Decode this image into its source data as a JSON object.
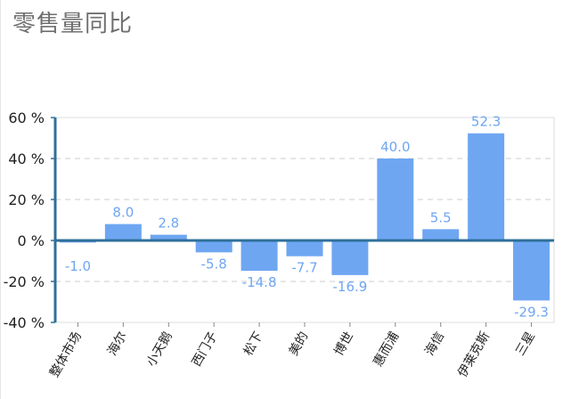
{
  "page": {
    "title": "零售量同比"
  },
  "chart_data": {
    "type": "bar",
    "title": "零售量同比",
    "xlabel": "",
    "ylabel": "",
    "categories": [
      "整体市场",
      "海尔",
      "小天鹅",
      "西门子",
      "松下",
      "美的",
      "博世",
      "惠而浦",
      "海信",
      "伊莱克斯",
      "三星"
    ],
    "values": [
      -1.0,
      8.0,
      2.8,
      -5.8,
      -14.8,
      -7.7,
      -16.9,
      40.0,
      5.5,
      52.3,
      -29.3
    ],
    "value_labels": [
      "-1.0",
      "8.0",
      "2.8",
      "-5.8",
      "-14.8",
      "-7.7",
      "-16.9",
      "40.0",
      "5.5",
      "52.3",
      "-29.3"
    ],
    "ylim": [
      -40,
      60
    ],
    "yticks": [
      -40,
      -20,
      0,
      20,
      40,
      60
    ],
    "ytick_labels": [
      "-40 %",
      "-20 %",
      "0 %",
      "20 %",
      "40 %",
      "60 %"
    ],
    "grid": true,
    "bar_color": "#6ea6f2",
    "label_color": "#6ea6f2",
    "axis_color": "#2f6f9a"
  }
}
